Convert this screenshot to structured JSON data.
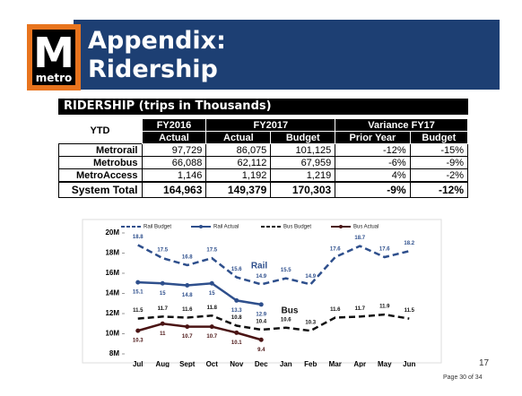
{
  "header": {
    "logo_top": "M",
    "logo_bottom": "metro",
    "title_line1": "Appendix:",
    "title_line2": "Ridership"
  },
  "table": {
    "title": "RIDERSHIP (trips in Thousands)",
    "ytd": "YTD",
    "groups": [
      "FY2016",
      "FY2017",
      "Variance FY17"
    ],
    "columns": [
      "Actual",
      "Actual",
      "Budget",
      "Prior Year",
      "Budget"
    ],
    "rows": [
      [
        "Metrorail",
        "97,729",
        "86,075",
        "101,125",
        "-12%",
        "-15%"
      ],
      [
        "Metrobus",
        "66,088",
        "62,112",
        "67,959",
        "-6%",
        "-9%"
      ],
      [
        "MetroAccess",
        "1,146",
        "1,192",
        "1,219",
        "4%",
        "-2%"
      ],
      [
        "System Total",
        "164,963",
        "149,379",
        "170,303",
        "-9%",
        "-12%"
      ]
    ]
  },
  "chart_data": {
    "type": "line",
    "categories": [
      "Jul",
      "Aug",
      "Sept",
      "Oct",
      "Nov",
      "Dec",
      "Jan",
      "Feb",
      "Mar",
      "Apr",
      "May",
      "Jun"
    ],
    "series": [
      {
        "name": "Rail Budget",
        "color": "#2e4f8c",
        "dashed": true,
        "markers": false,
        "values": [
          18.8,
          17.5,
          16.8,
          17.5,
          15.6,
          14.9,
          15.5,
          14.9,
          17.6,
          18.7,
          17.6,
          18.2
        ]
      },
      {
        "name": "Rail Actual",
        "color": "#2e4f8c",
        "dashed": false,
        "markers": true,
        "values": [
          15.1,
          15.0,
          14.8,
          15.0,
          13.3,
          12.9,
          null,
          null,
          null,
          null,
          null,
          null
        ]
      },
      {
        "name": "Bus Budget",
        "color": "#111111",
        "dashed": true,
        "markers": false,
        "values": [
          11.5,
          11.7,
          11.6,
          11.8,
          10.8,
          10.4,
          10.6,
          10.3,
          11.6,
          11.7,
          11.9,
          11.5
        ]
      },
      {
        "name": "Bus Actual",
        "color": "#4a1414",
        "dashed": false,
        "markers": true,
        "values": [
          10.3,
          11.0,
          10.7,
          10.7,
          10.1,
          9.4,
          null,
          null,
          null,
          null,
          null,
          null
        ]
      }
    ],
    "ylim": [
      8,
      20
    ],
    "yticks": [
      {
        "value": 8,
        "label": "8M"
      },
      {
        "value": 10,
        "label": "10M"
      },
      {
        "value": 12,
        "label": "12M"
      },
      {
        "value": 14,
        "label": "14M"
      },
      {
        "value": 16,
        "label": "16M"
      },
      {
        "value": 18,
        "label": "18M"
      },
      {
        "value": 20,
        "label": "20M"
      }
    ],
    "annotations": [
      "Rail",
      "Bus"
    ]
  },
  "footer": {
    "slide_number": "17",
    "page": "Page 30 of 34"
  }
}
